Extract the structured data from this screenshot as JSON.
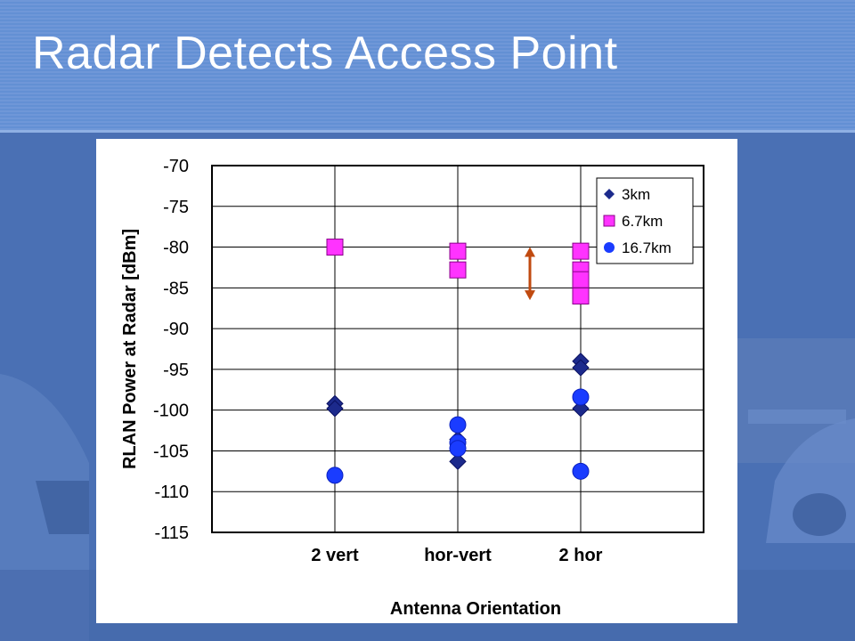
{
  "slide": {
    "title": "Radar Detects Access Point"
  },
  "colors": {
    "header": "#6f97d8",
    "background": "#4a70b4",
    "series_3km": "#1c2a8c",
    "series_6_7km": "#ff33ff",
    "series_16_7km": "#1a3cff",
    "arrow": "#c04a10"
  },
  "chart_data": {
    "type": "scatter",
    "categories": [
      "2 vert",
      "hor-vert",
      "2 hor"
    ],
    "xlabel": "Antenna Orientation",
    "ylabel": "RLAN Power at Radar [dBm]",
    "ylim": [
      -115,
      -70
    ],
    "yticks": [
      -70,
      -75,
      -80,
      -85,
      -90,
      -95,
      -100,
      -105,
      -110,
      -115
    ],
    "grid": true,
    "legend_position": "top-right",
    "series": [
      {
        "name": "3km",
        "marker": "diamond",
        "color": "#1c2a8c",
        "points": [
          {
            "x": "2 vert",
            "y": -99.2
          },
          {
            "x": "2 vert",
            "y": -99.8
          },
          {
            "x": "hor-vert",
            "y": -103.6
          },
          {
            "x": "hor-vert",
            "y": -106.3
          },
          {
            "x": "2 hor",
            "y": -94.0
          },
          {
            "x": "2 hor",
            "y": -94.8
          },
          {
            "x": "2 hor",
            "y": -99.8
          }
        ]
      },
      {
        "name": "6.7km",
        "marker": "square",
        "color": "#ff33ff",
        "points": [
          {
            "x": "2 vert",
            "y": -80.0
          },
          {
            "x": "hor-vert",
            "y": -80.5
          },
          {
            "x": "hor-vert",
            "y": -82.8
          },
          {
            "x": "2 hor",
            "y": -80.5
          },
          {
            "x": "2 hor",
            "y": -82.8
          },
          {
            "x": "2 hor",
            "y": -84.0
          },
          {
            "x": "2 hor",
            "y": -86.0
          }
        ]
      },
      {
        "name": "16.7km",
        "marker": "circle",
        "color": "#1a3cff",
        "points": [
          {
            "x": "2 vert",
            "y": -108.0
          },
          {
            "x": "hor-vert",
            "y": -101.8
          },
          {
            "x": "hor-vert",
            "y": -104.0
          },
          {
            "x": "hor-vert",
            "y": -104.7
          },
          {
            "x": "2 hor",
            "y": -98.4
          },
          {
            "x": "2 hor",
            "y": -107.5
          }
        ]
      }
    ],
    "annotations": [
      {
        "type": "double-arrow",
        "x_between": [
          "hor-vert",
          "2 hor"
        ],
        "y_range": [
          -80,
          -86.5
        ],
        "color": "#c04a10"
      }
    ]
  }
}
